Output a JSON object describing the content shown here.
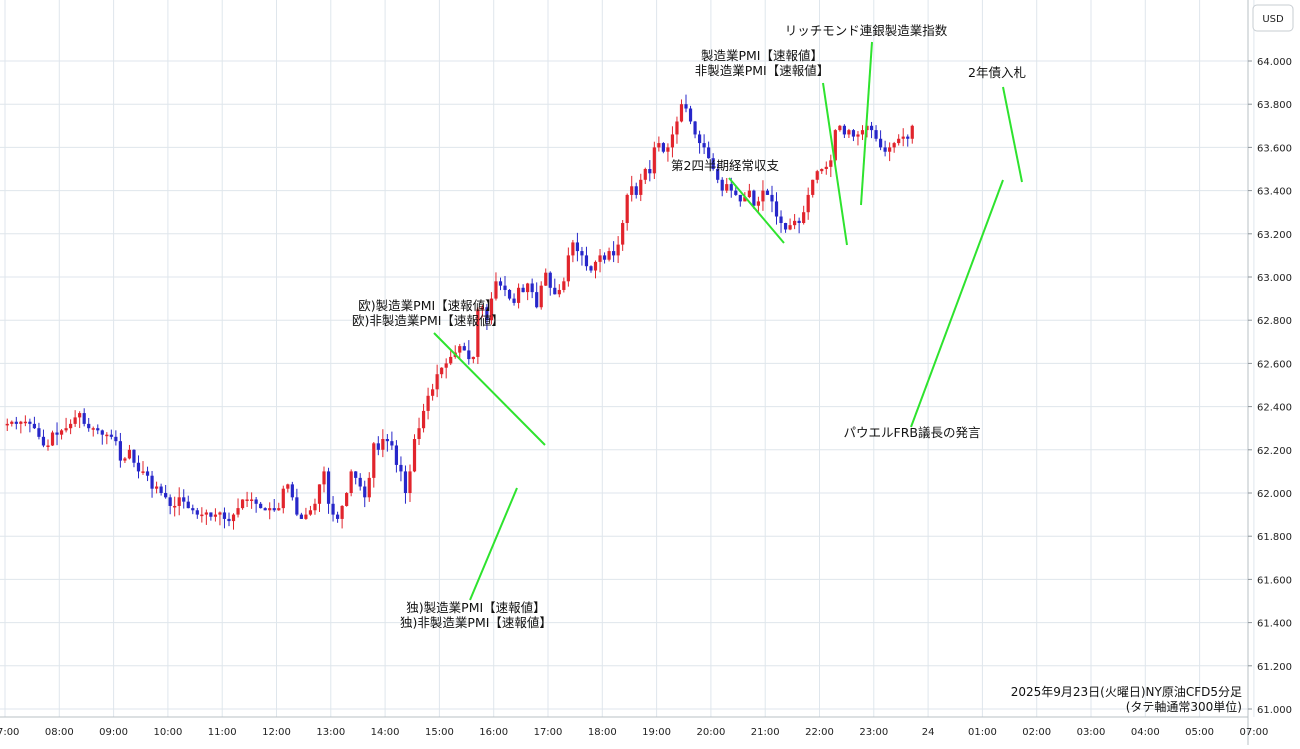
{
  "currency_badge": "USD",
  "caption": {
    "line1": "2025年9月23日(火曜日)NY原油CFD5分足",
    "line2": "(タテ軸通常300単位)"
  },
  "colors": {
    "up": "#e1242c",
    "down": "#2727c9",
    "annotation_line": "#2ee32e",
    "grid": "#dfe6ec"
  },
  "chart_data": {
    "type": "candlestick",
    "title": "2025年9月23日(火曜日)NY原油CFD5分足",
    "ylabel": "USD",
    "ylim": [
      61.0,
      64.2
    ],
    "grid": true,
    "y_ticks": [
      "61.000",
      "61.200",
      "61.400",
      "61.600",
      "61.800",
      "62.000",
      "62.200",
      "62.400",
      "62.600",
      "62.800",
      "63.000",
      "63.200",
      "63.400",
      "63.600",
      "63.800",
      "64.000"
    ],
    "x_ticks": [
      "07:00",
      "08:00",
      "09:00",
      "10:00",
      "11:00",
      "12:00",
      "13:00",
      "14:00",
      "15:00",
      "16:00",
      "17:00",
      "18:00",
      "19:00",
      "20:00",
      "21:00",
      "22:00",
      "23:00",
      "24",
      "01:00",
      "02:00",
      "03:00",
      "04:00",
      "05:00",
      "07:00"
    ],
    "series": [
      {
        "interval": "5m",
        "start": "07:00",
        "closes": [
          62.32,
          62.33,
          62.32,
          62.33,
          62.33,
          62.32,
          62.3,
          62.26,
          62.22,
          62.22,
          62.28,
          62.27,
          62.29,
          62.3,
          62.32,
          62.35,
          62.37,
          62.32,
          62.3,
          62.3,
          62.29,
          62.27,
          62.27,
          62.26,
          62.24,
          62.15,
          62.16,
          62.2,
          62.14,
          62.1,
          62.1,
          62.08,
          62.02,
          62.03,
          62.0,
          61.98,
          61.94,
          61.94,
          61.98,
          61.96,
          61.93,
          61.92,
          61.9,
          61.9,
          61.91,
          61.89,
          61.9,
          61.91,
          61.88,
          61.87,
          61.9,
          61.93,
          61.97,
          61.97,
          61.97,
          61.95,
          61.93,
          61.92,
          61.93,
          61.92,
          61.93,
          62.02,
          62.04,
          61.98,
          61.9,
          61.88,
          61.9,
          61.92,
          61.95,
          62.04,
          62.1,
          61.95,
          61.9,
          61.88,
          61.94,
          62.0,
          62.1,
          62.07,
          62.03,
          61.98,
          62.07,
          62.23,
          62.2,
          62.25,
          62.24,
          62.22,
          62.13,
          62.1,
          62.0,
          62.1,
          62.25,
          62.3,
          62.38,
          62.45,
          62.48,
          62.55,
          62.58,
          62.6,
          62.63,
          62.65,
          62.68,
          62.66,
          62.62,
          62.63,
          62.85,
          62.86,
          62.8,
          62.9,
          62.98,
          62.96,
          62.94,
          62.9,
          62.88,
          62.95,
          62.93,
          62.97,
          62.93,
          62.86,
          62.96,
          63.02,
          62.95,
          62.92,
          62.94,
          62.98,
          63.1,
          63.16,
          63.12,
          63.1,
          63.05,
          63.03,
          63.07,
          63.1,
          63.08,
          63.12,
          63.1,
          63.15,
          63.25,
          63.38,
          63.42,
          63.38,
          63.45,
          63.5,
          63.48,
          63.6,
          63.62,
          63.58,
          63.6,
          63.66,
          63.72,
          63.8,
          63.78,
          63.72,
          63.66,
          63.62,
          63.6,
          63.55,
          63.5,
          63.45,
          63.4,
          63.43,
          63.4,
          63.38,
          63.35,
          63.37,
          63.4,
          63.33,
          63.35,
          63.4,
          63.38,
          63.35,
          63.28,
          63.25,
          63.22,
          63.24,
          63.26,
          63.25,
          63.3,
          63.38,
          63.45,
          63.49,
          63.5,
          63.51,
          63.54,
          63.68,
          63.7,
          63.66,
          63.68,
          63.65,
          63.66,
          63.68,
          63.7,
          63.68,
          63.64,
          63.6,
          63.58,
          63.6,
          63.62,
          63.64,
          63.65,
          63.64,
          63.7
        ]
      }
    ],
    "annotations": [
      {
        "lines": [
          "独)製造業PMI【速報値】",
          "独)非製造業PMI【速報値】"
        ],
        "time": "16:15"
      },
      {
        "lines": [
          "欧)製造業PMI【速報値】",
          "欧)非製造業PMI【速報値】"
        ],
        "time": "17:00"
      },
      {
        "lines": [
          "第2四半期経常収支"
        ],
        "time": "21:30"
      },
      {
        "lines": [
          "製造業PMI【速報値】",
          "非製造業PMI【速報値】"
        ],
        "time": "22:45"
      },
      {
        "lines": [
          "リッチモンド連銀製造業指数"
        ],
        "time": "23:00"
      },
      {
        "lines": [
          "2年債入札"
        ],
        "time": "01:50"
      },
      {
        "lines": [
          "パウエルFRB議長の発言"
        ],
        "time": "01:30"
      }
    ]
  }
}
